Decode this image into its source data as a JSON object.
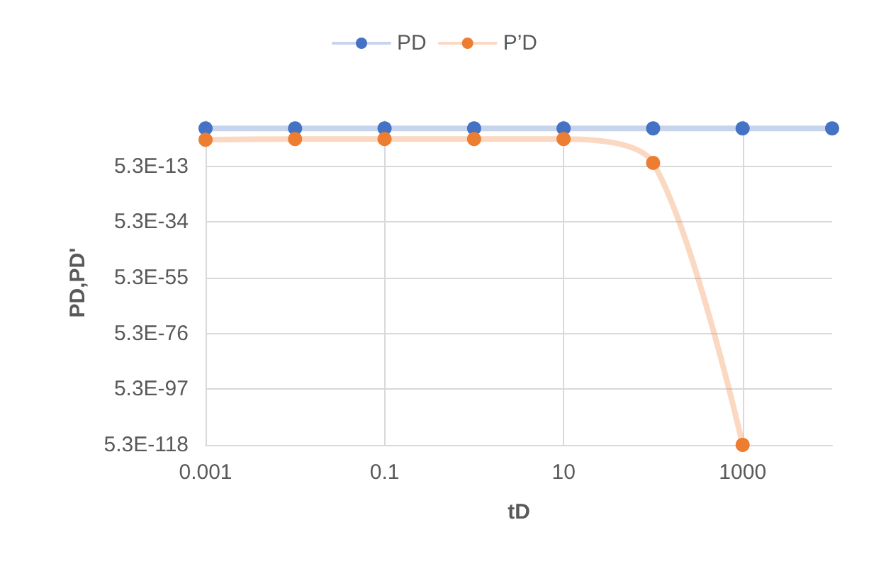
{
  "chart_data": {
    "type": "line",
    "xlabel": "tD",
    "ylabel": "PD,PD'",
    "x": [
      0.001,
      0.01,
      0.1,
      1,
      10,
      100,
      1000,
      10000
    ],
    "series": [
      {
        "name": "PD",
        "color": "#4472c4",
        "values": [
          100,
          100,
          100,
          100,
          100,
          100,
          100,
          100
        ]
      },
      {
        "name": "P’D",
        "color": "#ed7d31",
        "values": [
          0.005,
          0.01,
          0.01,
          0.01,
          0.01,
          1e-11,
          5.3e-118,
          null
        ]
      }
    ],
    "log": "xy",
    "xlim": [
      0.001,
      10000
    ],
    "xticks": [
      0.001,
      0.1,
      10,
      1000
    ],
    "ylim": [
      5.3e-118,
      100000
    ],
    "yticks": [
      {
        "value": 5.3e-118,
        "label": "5.3E-118"
      },
      {
        "value": 5.3e-97,
        "label": "5.3E-97"
      },
      {
        "value": 5.3e-76,
        "label": "5.3E-76"
      },
      {
        "value": 5.3e-55,
        "label": "5.3E-55"
      },
      {
        "value": 5.3e-34,
        "label": "5.3E-34"
      },
      {
        "value": 5.3e-13,
        "label": "5.3E-13"
      }
    ],
    "grid": true,
    "legend": "top",
    "marker": "circle",
    "line_style": "solid"
  }
}
